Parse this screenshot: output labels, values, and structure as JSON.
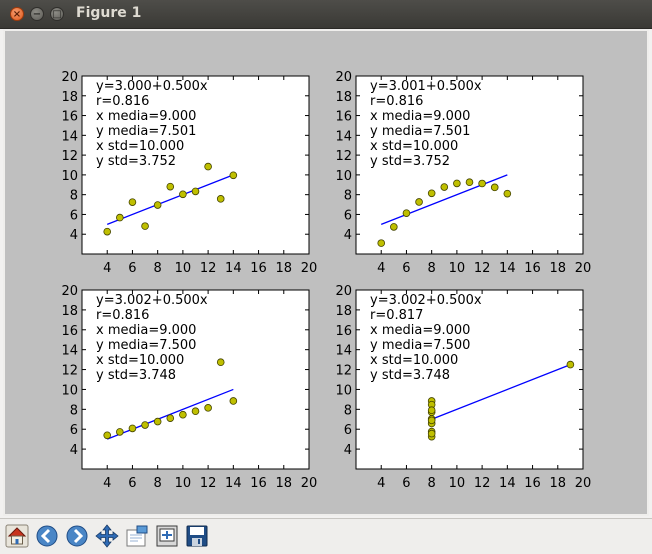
{
  "window": {
    "title": "Figure 1",
    "close_glyph": "×",
    "min_glyph": "−",
    "max_glyph": "□"
  },
  "colors": {
    "figure_bg": "#bfbfbf",
    "axes_bg": "#ffffff",
    "line": "#0000ff",
    "marker": "#bfbf00",
    "marker_edge": "#444400"
  },
  "chart_data": [
    {
      "type": "scatter",
      "title": "",
      "xlabel": "",
      "ylabel": "",
      "xlim": [
        2,
        20
      ],
      "ylim": [
        2,
        20
      ],
      "xticks": [
        4,
        6,
        8,
        10,
        12,
        14,
        16,
        18,
        20
      ],
      "yticks": [
        4,
        6,
        8,
        10,
        12,
        14,
        16,
        18,
        20
      ],
      "grid": false,
      "x": [
        10,
        8,
        13,
        9,
        11,
        14,
        6,
        4,
        12,
        7,
        5
      ],
      "y": [
        8.04,
        6.95,
        7.58,
        8.81,
        8.33,
        9.96,
        7.24,
        4.26,
        10.84,
        4.82,
        5.68
      ],
      "fit_line": {
        "x": [
          4,
          14
        ],
        "y": [
          5.0,
          10.0
        ]
      },
      "annotations": [
        "y=3.000+0.500x",
        "r=0.816",
        "x media=9.000",
        "y media=7.501",
        "x std=10.000",
        "y std=3.752"
      ]
    },
    {
      "type": "scatter",
      "title": "",
      "xlabel": "",
      "ylabel": "",
      "xlim": [
        2,
        20
      ],
      "ylim": [
        2,
        20
      ],
      "xticks": [
        4,
        6,
        8,
        10,
        12,
        14,
        16,
        18,
        20
      ],
      "yticks": [
        4,
        6,
        8,
        10,
        12,
        14,
        16,
        18,
        20
      ],
      "grid": false,
      "x": [
        10,
        8,
        13,
        9,
        11,
        14,
        6,
        4,
        12,
        7,
        5
      ],
      "y": [
        9.14,
        8.14,
        8.74,
        8.77,
        9.26,
        8.1,
        6.13,
        3.1,
        9.13,
        7.26,
        4.74
      ],
      "fit_line": {
        "x": [
          4,
          14
        ],
        "y": [
          5.0,
          10.0
        ]
      },
      "annotations": [
        "y=3.001+0.500x",
        "r=0.816",
        "x media=9.000",
        "y media=7.501",
        "x std=10.000",
        "y std=3.752"
      ]
    },
    {
      "type": "scatter",
      "title": "",
      "xlabel": "",
      "ylabel": "",
      "xlim": [
        2,
        20
      ],
      "ylim": [
        2,
        20
      ],
      "xticks": [
        4,
        6,
        8,
        10,
        12,
        14,
        16,
        18,
        20
      ],
      "yticks": [
        4,
        6,
        8,
        10,
        12,
        14,
        16,
        18,
        20
      ],
      "grid": false,
      "x": [
        10,
        8,
        13,
        9,
        11,
        14,
        6,
        4,
        12,
        7,
        5
      ],
      "y": [
        7.46,
        6.77,
        12.74,
        7.11,
        7.81,
        8.84,
        6.08,
        5.39,
        8.15,
        6.42,
        5.73
      ],
      "fit_line": {
        "x": [
          4,
          14
        ],
        "y": [
          5.0,
          10.0
        ]
      },
      "annotations": [
        "y=3.002+0.500x",
        "r=0.816",
        "x media=9.000",
        "y media=7.500",
        "x std=10.000",
        "y std=3.748"
      ]
    },
    {
      "type": "scatter",
      "title": "",
      "xlabel": "",
      "ylabel": "",
      "xlim": [
        2,
        20
      ],
      "ylim": [
        2,
        20
      ],
      "xticks": [
        4,
        6,
        8,
        10,
        12,
        14,
        16,
        18,
        20
      ],
      "yticks": [
        4,
        6,
        8,
        10,
        12,
        14,
        16,
        18,
        20
      ],
      "grid": false,
      "x": [
        8,
        8,
        8,
        8,
        8,
        8,
        8,
        19,
        8,
        8,
        8
      ],
      "y": [
        6.58,
        5.76,
        7.71,
        8.84,
        8.47,
        7.04,
        5.25,
        12.5,
        5.56,
        7.91,
        6.89
      ],
      "fit_line": {
        "x": [
          8,
          19
        ],
        "y": [
          7.0,
          12.5
        ]
      },
      "annotations": [
        "y=3.002+0.500x",
        "r=0.817",
        "x media=9.000",
        "y media=7.500",
        "x std=10.000",
        "y std=3.748"
      ]
    }
  ],
  "toolbar": {
    "buttons": [
      {
        "name": "home-icon",
        "label": "Home"
      },
      {
        "name": "back-icon",
        "label": "Back"
      },
      {
        "name": "forward-icon",
        "label": "Forward"
      },
      {
        "name": "pan-icon",
        "label": "Pan"
      },
      {
        "name": "zoom-icon",
        "label": "Zoom"
      },
      {
        "name": "subplots-icon",
        "label": "Subplots"
      },
      {
        "name": "save-icon",
        "label": "Save"
      }
    ]
  }
}
